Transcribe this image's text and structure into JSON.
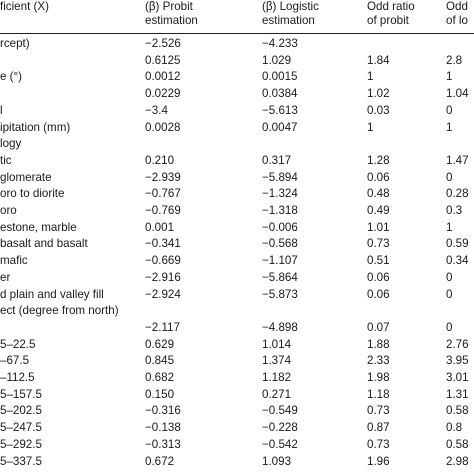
{
  "table": {
    "headers": {
      "col1": "ficient (X)",
      "col2": [
        "(β) Probit",
        "estimation"
      ],
      "col3": [
        "(β) Logistic",
        "estimation"
      ],
      "col4": [
        "Odd ratio",
        "of probit"
      ],
      "col5": [
        "Odd",
        "of lo"
      ]
    },
    "rows": [
      {
        "label": "rcept)",
        "v": [
          "−2.526",
          "−4.233",
          "",
          ""
        ]
      },
      {
        "label": "",
        "v": [
          "0.6125",
          "1.029",
          "1.84",
          "2.8"
        ]
      },
      {
        "label": "e (°)",
        "v": [
          "0.0012",
          "0.0015",
          "1",
          "1"
        ]
      },
      {
        "label": "",
        "v": [
          "0.0229",
          "0.0384",
          "1.02",
          "1.04"
        ]
      },
      {
        "label": "l",
        "v": [
          "−3.4",
          "−5.613",
          "0.03",
          "0"
        ]
      },
      {
        "label": "ipitation (mm)",
        "v": [
          "0.0028",
          "0.0047",
          "1",
          "1"
        ]
      },
      {
        "label": "logy",
        "v": [
          "",
          "",
          "",
          ""
        ]
      },
      {
        "label": "tic",
        "v": [
          "0.210",
          "0.317",
          "1.28",
          "1.47"
        ]
      },
      {
        "label": "glomerate",
        "v": [
          "−2.939",
          "−5.894",
          "0.06",
          "0"
        ]
      },
      {
        "label": "oro to diorite",
        "v": [
          "−0.767",
          "−1.324",
          "0.48",
          "0.28"
        ]
      },
      {
        "label": "oro",
        "v": [
          "−0.769",
          "−1.318",
          "0.49",
          "0.3"
        ]
      },
      {
        "label": "estone, marble",
        "v": [
          "0.001",
          "−0.006",
          "1.01",
          "1"
        ]
      },
      {
        "label": "basalt and basalt",
        "v": [
          "−0.341",
          "−0.568",
          "0.73",
          "0.59"
        ]
      },
      {
        "label": "mafic",
        "v": [
          "−0.669",
          "−1.107",
          "0.51",
          "0.34"
        ]
      },
      {
        "label": "er",
        "v": [
          "−2.916",
          "−5.864",
          "0.06",
          "0"
        ]
      },
      {
        "label": "d plain and valley fill",
        "v": [
          "−2.924",
          "−5.873",
          "0.06",
          "0"
        ]
      },
      {
        "label": "ect (degree from north)",
        "v": [
          "",
          "",
          "",
          ""
        ]
      },
      {
        "label": "",
        "v": [
          "−2.117",
          "−4.898",
          "0.07",
          "0"
        ]
      },
      {
        "label": "5–22.5",
        "v": [
          "0.629",
          "1.014",
          "1.88",
          "2.76"
        ]
      },
      {
        "label": "–67.5",
        "v": [
          "0.845",
          "1.374",
          "2.33",
          "3.95"
        ]
      },
      {
        "label": "–112.5",
        "v": [
          "0.682",
          "1.182",
          "1.98",
          "3.01"
        ]
      },
      {
        "label": "5–157.5",
        "v": [
          "0.150",
          "0.271",
          "1.18",
          "1.31"
        ]
      },
      {
        "label": "5–202.5",
        "v": [
          "−0.316",
          "−0.549",
          "0.73",
          "0.58"
        ]
      },
      {
        "label": "5–247.5",
        "v": [
          "−0.138",
          "−0.228",
          "0.87",
          "0.8"
        ]
      },
      {
        "label": "5–292.5",
        "v": [
          "−0.313",
          "−0.542",
          "0.73",
          "0.58"
        ]
      },
      {
        "label": "5–337.5",
        "v": [
          "0.672",
          "1.093",
          "1.96",
          "2.98"
        ]
      }
    ]
  }
}
